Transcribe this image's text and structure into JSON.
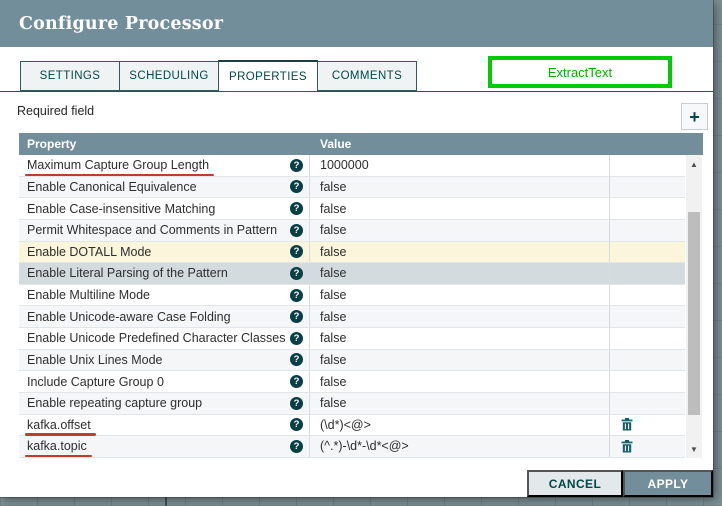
{
  "dialog": {
    "title": "Configure Processor"
  },
  "tabs": [
    {
      "label": "SETTINGS",
      "active": false
    },
    {
      "label": "SCHEDULING",
      "active": false
    },
    {
      "label": "PROPERTIES",
      "active": true
    },
    {
      "label": "COMMENTS",
      "active": false
    }
  ],
  "annotation": {
    "processor_type_label": "ExtractText",
    "box_color": "#00cb00",
    "underline_color": "#c23b2e"
  },
  "properties_tab": {
    "required_field_label": "Required field",
    "add_property_button": "+"
  },
  "table": {
    "columns": [
      "Property",
      "Value"
    ],
    "rows": [
      {
        "property": "Maximum Capture Group Length",
        "value": "1000000",
        "deletable": false,
        "underlined": true,
        "highlight": ""
      },
      {
        "property": "Enable Canonical Equivalence",
        "value": "false",
        "deletable": false,
        "underlined": false,
        "highlight": ""
      },
      {
        "property": "Enable Case-insensitive Matching",
        "value": "false",
        "deletable": false,
        "underlined": false,
        "highlight": ""
      },
      {
        "property": "Permit Whitespace and Comments in Pattern",
        "value": "false",
        "deletable": false,
        "underlined": false,
        "highlight": ""
      },
      {
        "property": "Enable DOTALL Mode",
        "value": "false",
        "deletable": false,
        "underlined": false,
        "highlight": "hover"
      },
      {
        "property": "Enable Literal Parsing of the Pattern",
        "value": "false",
        "deletable": false,
        "underlined": false,
        "highlight": "selected"
      },
      {
        "property": "Enable Multiline Mode",
        "value": "false",
        "deletable": false,
        "underlined": false,
        "highlight": ""
      },
      {
        "property": "Enable Unicode-aware Case Folding",
        "value": "false",
        "deletable": false,
        "underlined": false,
        "highlight": ""
      },
      {
        "property": "Enable Unicode Predefined Character Classes",
        "value": "false",
        "deletable": false,
        "underlined": false,
        "highlight": ""
      },
      {
        "property": "Enable Unix Lines Mode",
        "value": "false",
        "deletable": false,
        "underlined": false,
        "highlight": ""
      },
      {
        "property": "Include Capture Group 0",
        "value": "false",
        "deletable": false,
        "underlined": false,
        "highlight": ""
      },
      {
        "property": "Enable repeating capture group",
        "value": "false",
        "deletable": false,
        "underlined": false,
        "highlight": ""
      },
      {
        "property": "kafka.offset",
        "value": "(\\d*)<@>",
        "deletable": true,
        "underlined": true,
        "highlight": ""
      },
      {
        "property": "kafka.topic",
        "value": "(^.*)-\\d*-\\d*<@>",
        "deletable": true,
        "underlined": true,
        "highlight": ""
      }
    ]
  },
  "scrollbar": {
    "up_icon": "▲",
    "down_icon": "▼"
  },
  "actions": {
    "cancel": "CANCEL",
    "apply": "APPLY"
  },
  "colors": {
    "titlebar_bg": "#728e9b",
    "table_header_bg": "#728e9b",
    "accent_teal": "#004849",
    "row_alt_bg": "#f4f6f7",
    "row_hover_bg": "#fbf5dc",
    "row_selected_bg": "#d3dbdf",
    "apply_button_bg": "#728e9b",
    "cancel_button_bg": "#e3e8ea"
  }
}
